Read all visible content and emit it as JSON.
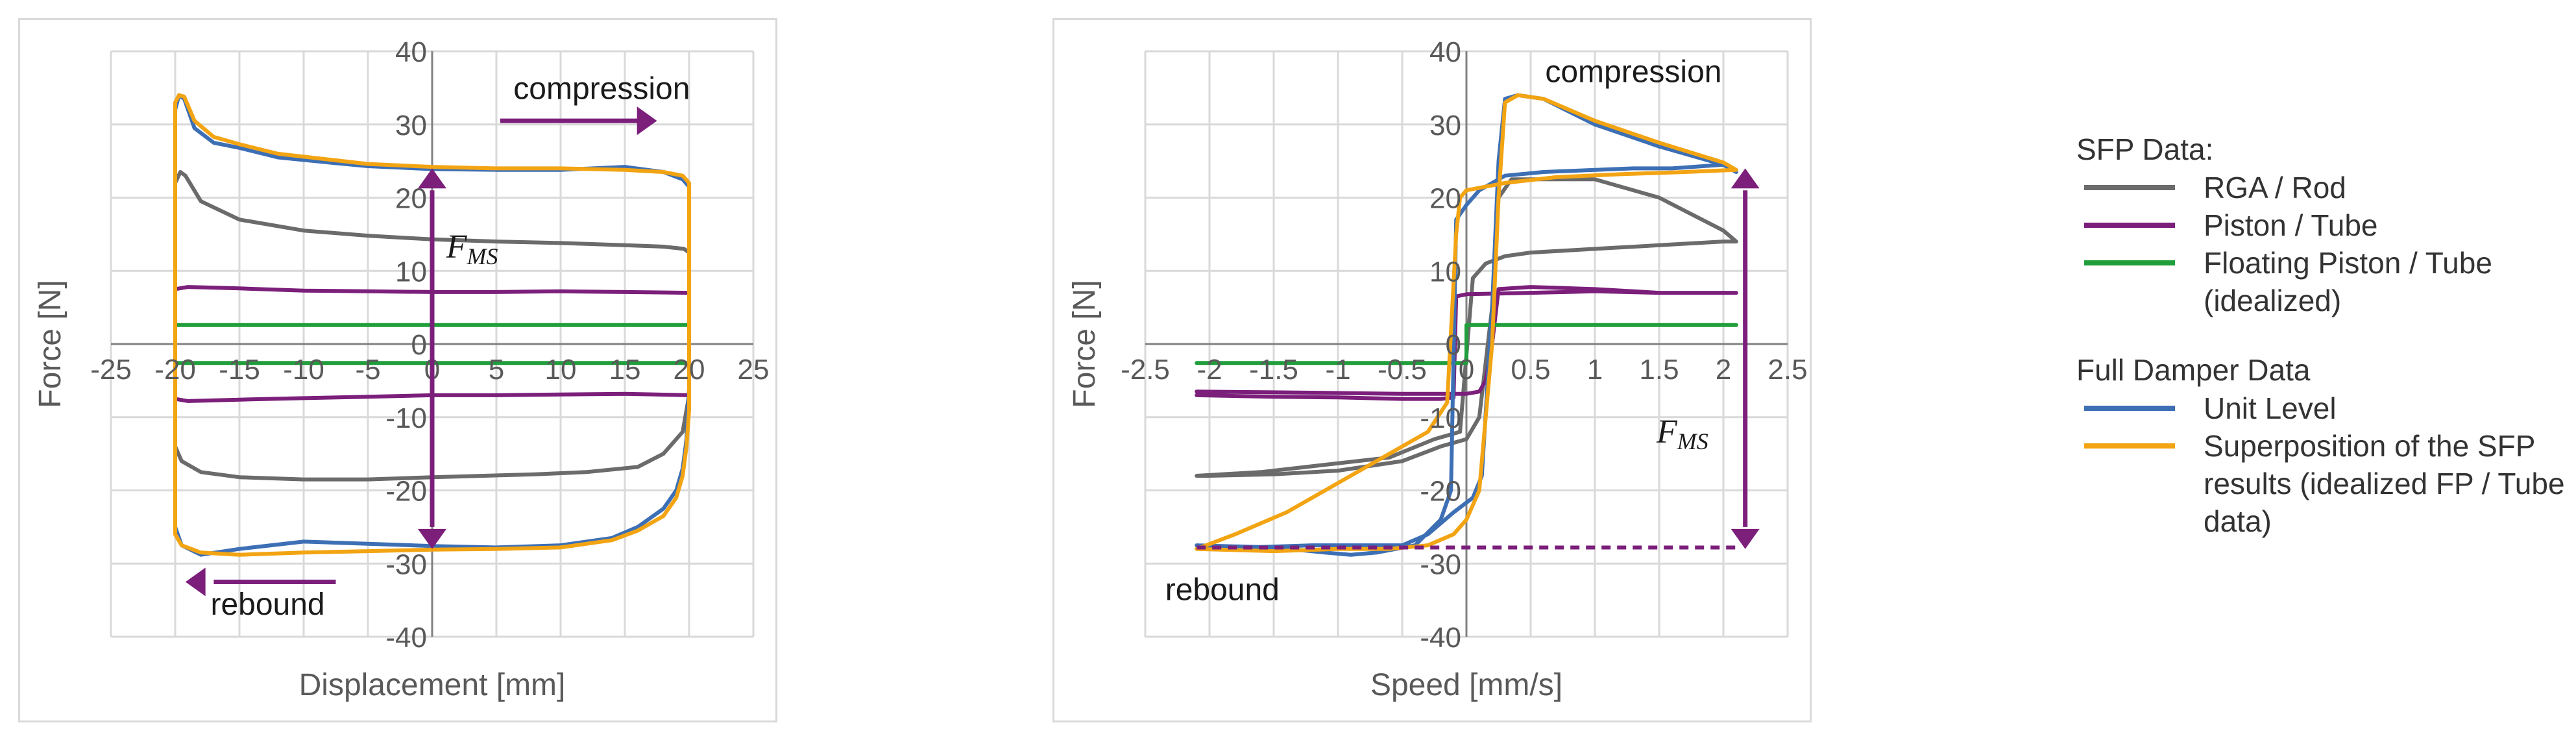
{
  "colors": {
    "rga_rod": "#6b6b6b",
    "piston_tube": "#7b1f7b",
    "floating_piston": "#1f9e3b",
    "unit_level": "#3d6fb5",
    "superposition": "#f2a413",
    "annotation": "#7b1f7b",
    "grid": "#d9d9d9"
  },
  "legend": {
    "sfp_title": "SFP Data:",
    "sfp_items": [
      {
        "label": "RGA / Rod",
        "color_key": "rga_rod"
      },
      {
        "label": "Piston / Tube",
        "color_key": "piston_tube"
      },
      {
        "label": "Floating Piston / Tube (idealized)",
        "color_key": "floating_piston"
      }
    ],
    "full_title": "Full Damper Data",
    "full_items": [
      {
        "label": "Unit Level",
        "color_key": "unit_level"
      },
      {
        "label": "Superposition of the SFP results (idealized FP / Tube data)",
        "color_key": "superposition"
      }
    ]
  },
  "chart_data": [
    {
      "type": "line",
      "xlabel": "Displacement [mm]",
      "ylabel": "Force [N]",
      "xlim": [
        -25,
        25
      ],
      "ylim": [
        -40,
        40
      ],
      "xticks": [
        -25,
        -20,
        -15,
        -10,
        -5,
        0,
        5,
        10,
        15,
        20,
        25
      ],
      "yticks": [
        -40,
        -30,
        -20,
        -10,
        0,
        10,
        20,
        30,
        40
      ],
      "grid": true,
      "annotations": {
        "compression": "compression",
        "rebound": "rebound",
        "fms_main": "F",
        "fms_sub": "MS"
      },
      "series": [
        {
          "color_key": "rga_rod",
          "x": [
            -20,
            -20,
            -19.6,
            -19.2,
            -18,
            -15,
            -10,
            -5,
            0,
            5,
            10,
            15,
            18,
            19.6,
            20,
            20,
            19.8,
            19.5,
            18,
            16,
            12,
            8,
            0,
            -5,
            -10,
            -15,
            -18,
            -19.5,
            -20
          ],
          "y": [
            -14,
            22,
            23.5,
            23,
            19.5,
            17,
            15.5,
            14.8,
            14.3,
            14,
            13.8,
            13.5,
            13.3,
            13,
            12.5,
            -7,
            -9,
            -12,
            -15,
            -16.8,
            -17.5,
            -17.8,
            -18.2,
            -18.5,
            -18.5,
            -18.2,
            -17.5,
            -16,
            -14
          ]
        },
        {
          "color_key": "piston_tube",
          "x": [
            -20,
            -20,
            -19,
            -15,
            -10,
            -5,
            0,
            5,
            10,
            15,
            20,
            20,
            15,
            10,
            5,
            0,
            -5,
            -10,
            -15,
            -19,
            -20
          ],
          "y": [
            -7.5,
            7.5,
            7.8,
            7.6,
            7.3,
            7.2,
            7.1,
            7.1,
            7.2,
            7.1,
            7.0,
            -7,
            -6.8,
            -6.9,
            -7.0,
            -7.0,
            -7.2,
            -7.4,
            -7.6,
            -7.8,
            -7.5
          ]
        },
        {
          "color_key": "floating_piston",
          "x": [
            -20,
            20
          ],
          "y": [
            2.6,
            2.6
          ]
        },
        {
          "color_key": "floating_piston",
          "x": [
            -20,
            20
          ],
          "y": [
            -2.6,
            -2.6
          ]
        },
        {
          "color_key": "unit_level",
          "x": [
            -20,
            -20,
            -19.7,
            -19.3,
            -18.5,
            -17,
            -15,
            -12,
            -8,
            -5,
            0,
            5,
            10,
            15,
            18,
            19.5,
            20,
            20,
            19.8,
            19.5,
            19,
            18,
            16,
            14,
            10,
            5,
            0,
            -5,
            -10,
            -15,
            -18,
            -19.5,
            -20
          ],
          "y": [
            -25,
            32,
            34,
            33.5,
            29.5,
            27.5,
            26.8,
            25.5,
            24.8,
            24.3,
            23.9,
            23.8,
            23.8,
            24.2,
            23.5,
            22.5,
            21.5,
            -6,
            -13,
            -17,
            -20,
            -22.5,
            -25,
            -26.5,
            -27.5,
            -27.8,
            -27.6,
            -27.3,
            -27.0,
            -28,
            -28.8,
            -27.5,
            -25
          ]
        },
        {
          "color_key": "superposition",
          "x": [
            -20,
            -20,
            -19.7,
            -19.3,
            -18.5,
            -17,
            -15,
            -12,
            -8,
            -5,
            0,
            5,
            10,
            15,
            18,
            19.5,
            20,
            20,
            19.8,
            19.5,
            19,
            18,
            16,
            14,
            10,
            5,
            0,
            -5,
            -10,
            -15,
            -18,
            -19.5,
            -20
          ],
          "y": [
            -26,
            33,
            34,
            33.8,
            30.5,
            28.3,
            27.3,
            26,
            25.2,
            24.6,
            24.2,
            24,
            24,
            23.8,
            23.5,
            23,
            22,
            -9,
            -14,
            -18,
            -21,
            -23.5,
            -25.5,
            -26.8,
            -27.8,
            -28,
            -28.1,
            -28.3,
            -28.5,
            -28.8,
            -28.5,
            -27.5,
            -26
          ]
        }
      ]
    },
    {
      "type": "line",
      "xlabel": "Speed [mm/s]",
      "ylabel": "Force [N]",
      "xlim": [
        -2.5,
        2.5
      ],
      "ylim": [
        -40,
        40
      ],
      "xticks": [
        -2.5,
        -2,
        -1.5,
        -1,
        -0.5,
        0,
        0.5,
        1,
        1.5,
        2,
        2.5
      ],
      "yticks": [
        -40,
        -30,
        -20,
        -10,
        0,
        10,
        20,
        30,
        40
      ],
      "grid": true,
      "annotations": {
        "compression": "compression",
        "rebound": "rebound",
        "fms_main": "F",
        "fms_sub": "MS"
      },
      "series": [
        {
          "color_key": "rga_rod",
          "x": [
            -2.1,
            -1.6,
            -1.1,
            -0.6,
            -0.25,
            -0.05,
            0.05,
            0.15,
            0.3,
            0.5,
            1.0,
            1.5,
            2.0,
            2.1,
            2.0,
            1.5,
            1.0,
            0.7,
            0.5,
            0.35,
            0.25,
            0.2,
            0.1,
            0.0,
            -0.2,
            -0.5,
            -1.0,
            -1.5,
            -2.0,
            -2.1
          ],
          "y": [
            -18,
            -17.5,
            -16.5,
            -15.5,
            -13,
            -12,
            9,
            11,
            12,
            12.5,
            13,
            13.5,
            14,
            14,
            15.5,
            20,
            22.5,
            22.5,
            22.5,
            22.5,
            20,
            5,
            -10,
            -13,
            -14,
            -16,
            -17.3,
            -17.8,
            -18,
            -18
          ]
        },
        {
          "color_key": "piston_tube",
          "x": [
            -2.1,
            -1.5,
            -1.0,
            -0.5,
            -0.2,
            -0.1,
            -0.08,
            0,
            0.5,
            1,
            1.5,
            2.1,
            2.1,
            1.5,
            1,
            0.5,
            0.25,
            0.2,
            0.15,
            0.1,
            0,
            -0.5,
            -1,
            -1.5,
            -2.1
          ],
          "y": [
            -7,
            -7.2,
            -7.3,
            -7.5,
            -7.5,
            -7.3,
            6.5,
            6.8,
            7.0,
            7.2,
            7.0,
            7.0,
            7.0,
            7.0,
            7.5,
            7.8,
            7.5,
            0,
            -5,
            -6.5,
            -6.8,
            -6.8,
            -6.7,
            -6.6,
            -6.5
          ]
        },
        {
          "color_key": "floating_piston",
          "x": [
            -2.1,
            0,
            0,
            2.1
          ],
          "y": [
            -2.6,
            -2.6,
            2.6,
            2.6
          ]
        },
        {
          "color_key": "unit_level",
          "x": [
            -2.1,
            -1.5,
            -1.1,
            -0.9,
            -0.7,
            -0.4,
            -0.2,
            -0.12,
            -0.08,
            0.0,
            0.1,
            0.3,
            0.6,
            1.0,
            1.3,
            1.6,
            2.0,
            2.1,
            2.0,
            1.5,
            1.0,
            0.6,
            0.4,
            0.3,
            0.25,
            0.2,
            0.12,
            0.05,
            -0.1,
            -0.3,
            -0.5,
            -0.8,
            -1.2,
            -1.7,
            -2.1
          ],
          "y": [
            -27.5,
            -27.8,
            -28.5,
            -28.8,
            -28.5,
            -27.5,
            -24,
            -20,
            17,
            19,
            21,
            23,
            23.5,
            23.8,
            24,
            24,
            24.5,
            23.5,
            24.5,
            27,
            30,
            33.5,
            34,
            33.5,
            25,
            5,
            -18,
            -21,
            -23,
            -26,
            -27.5,
            -27.5,
            -27.5,
            -27.8,
            -27.5
          ]
        },
        {
          "color_key": "superposition",
          "x": [
            -2.1,
            -1.8,
            -1.4,
            -1.0,
            -0.6,
            -0.3,
            -0.15,
            -0.08,
            -0.05,
            0.0,
            0.3,
            0.7,
            1.2,
            1.7,
            2.1,
            2.0,
            1.5,
            1.0,
            0.6,
            0.4,
            0.3,
            0.25,
            0.2,
            0.1,
            0.0,
            -0.1,
            -0.3,
            -0.6,
            -1.0,
            -1.5,
            -2.1
          ],
          "y": [
            -28,
            -26,
            -23,
            -19,
            -15,
            -12,
            -8,
            15,
            20,
            21,
            22,
            22.8,
            23.2,
            23.5,
            23.8,
            24.8,
            27.5,
            30.5,
            33.5,
            34,
            33,
            20,
            0,
            -20,
            -24,
            -26,
            -27.5,
            -28,
            -28,
            -28.3,
            -28
          ]
        }
      ]
    }
  ]
}
